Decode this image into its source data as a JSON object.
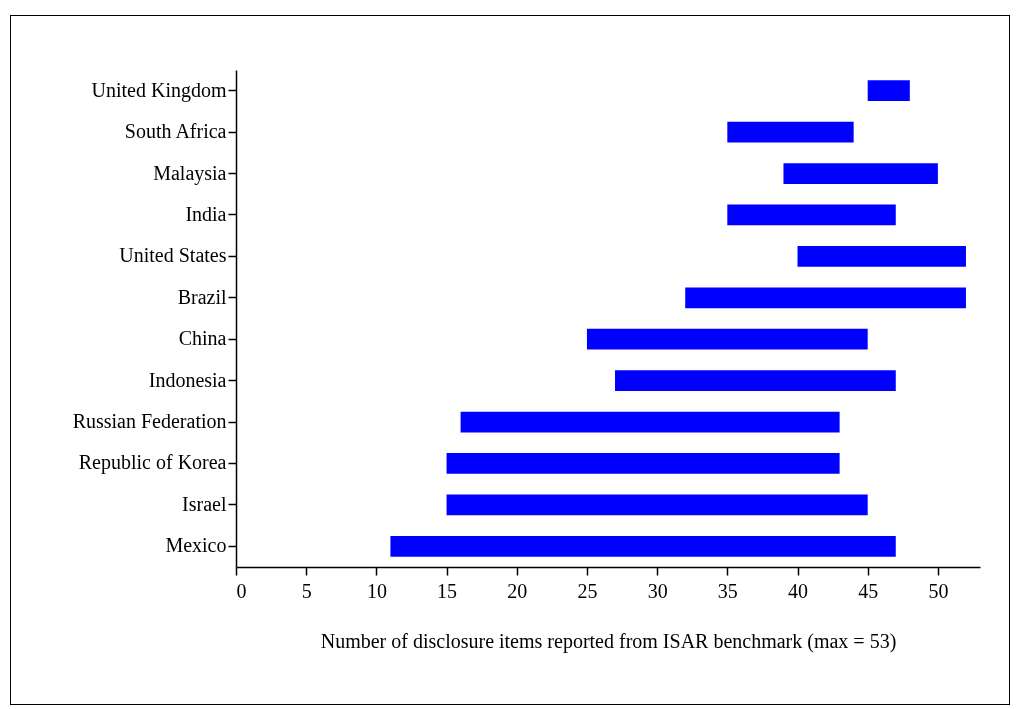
{
  "chart_data": {
    "type": "bar",
    "orientation": "horizontal",
    "xlabel": "Number of disclosure items reported from ISAR benchmark (max = 53)",
    "categories": [
      "United Kingdom",
      "South Africa",
      "Malaysia",
      "India",
      "United States",
      "Brazil",
      "China",
      "Indonesia",
      "Russian Federation",
      "Republic of Korea",
      "Israel",
      "Mexico"
    ],
    "base": [
      45,
      35,
      39,
      35,
      40,
      32,
      25,
      27,
      16,
      15,
      15,
      11
    ],
    "values": [
      3,
      9,
      11,
      12,
      12,
      20,
      20,
      20,
      27,
      28,
      30,
      36
    ],
    "color": "#0000ff",
    "xlim": [
      0,
      53
    ],
    "xticks": [
      0,
      5,
      10,
      15,
      20,
      25,
      30,
      35,
      40,
      45,
      50
    ],
    "grid": false
  }
}
